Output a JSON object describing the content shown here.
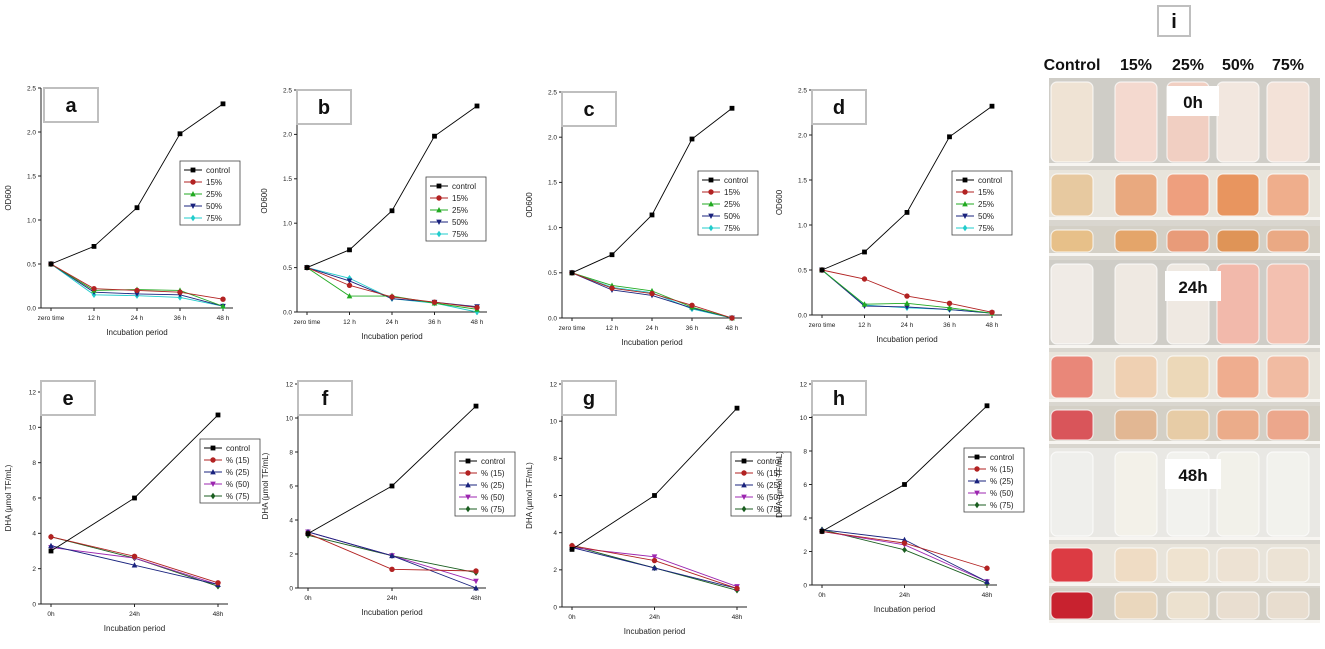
{
  "photo_panel": {
    "letter": "i",
    "columns": [
      "Control",
      "15%",
      "25%",
      "50%",
      "75%"
    ],
    "time_labels": [
      "0h",
      "24h",
      "48h"
    ]
  },
  "chart_data": [
    {
      "panel": "a",
      "type": "line",
      "xlabel": "Incubation period",
      "ylabel": "OD600",
      "categories": [
        "zero time",
        "12 h",
        "24 h",
        "36 h",
        "48 h"
      ],
      "ylim": [
        0,
        2.5
      ],
      "yticks": [
        "0.0",
        "0.5",
        "1.0",
        "1.5",
        "2.0",
        "2.5"
      ],
      "series": [
        {
          "name": "control",
          "color": "#000000",
          "marker": "square",
          "values": [
            0.5,
            0.7,
            1.14,
            1.98,
            2.32
          ]
        },
        {
          "name": "15%",
          "color": "#b22222",
          "marker": "circle",
          "values": [
            0.5,
            0.22,
            0.2,
            0.18,
            0.1
          ]
        },
        {
          "name": "25%",
          "color": "#22aa22",
          "marker": "triangle-up",
          "values": [
            0.5,
            0.2,
            0.21,
            0.2,
            0.02
          ]
        },
        {
          "name": "50%",
          "color": "#1a237e",
          "marker": "triangle-down",
          "values": [
            0.5,
            0.18,
            0.16,
            0.15,
            0.02
          ]
        },
        {
          "name": "75%",
          "color": "#22cccc",
          "marker": "diamond",
          "values": [
            0.5,
            0.15,
            0.14,
            0.12,
            0.02
          ]
        }
      ]
    },
    {
      "panel": "b",
      "type": "line",
      "xlabel": "Incubation period",
      "ylabel": "OD600",
      "categories": [
        "zero time",
        "12 h",
        "24 h",
        "36 h",
        "48 h"
      ],
      "ylim": [
        0,
        2.5
      ],
      "yticks": [
        "0.0",
        "0.5",
        "1.0",
        "1.5",
        "2.0",
        "2.5"
      ],
      "series": [
        {
          "name": "control",
          "color": "#000000",
          "marker": "square",
          "values": [
            0.5,
            0.7,
            1.14,
            1.98,
            2.32
          ]
        },
        {
          "name": "15%",
          "color": "#b22222",
          "marker": "circle",
          "values": [
            0.5,
            0.3,
            0.17,
            0.11,
            0.05
          ]
        },
        {
          "name": "25%",
          "color": "#22aa22",
          "marker": "triangle-up",
          "values": [
            0.5,
            0.18,
            0.18,
            0.1,
            0.03
          ]
        },
        {
          "name": "50%",
          "color": "#1a237e",
          "marker": "triangle-down",
          "values": [
            0.5,
            0.35,
            0.15,
            0.11,
            0.06
          ]
        },
        {
          "name": "75%",
          "color": "#22cccc",
          "marker": "diamond",
          "values": [
            0.5,
            0.38,
            0.15,
            0.1,
            0.0
          ]
        }
      ]
    },
    {
      "panel": "c",
      "type": "line",
      "xlabel": "Incubation period",
      "ylabel": "OD600",
      "categories": [
        "zero time",
        "12 h",
        "24 h",
        "36 h",
        "48 h"
      ],
      "ylim": [
        0,
        2.5
      ],
      "yticks": [
        "0.0",
        "0.5",
        "1.0",
        "1.5",
        "2.0",
        "2.5"
      ],
      "series": [
        {
          "name": "control",
          "color": "#000000",
          "marker": "square",
          "values": [
            0.5,
            0.7,
            1.14,
            1.98,
            2.32
          ]
        },
        {
          "name": "15%",
          "color": "#b22222",
          "marker": "circle",
          "values": [
            0.5,
            0.33,
            0.27,
            0.14,
            0.0
          ]
        },
        {
          "name": "25%",
          "color": "#22aa22",
          "marker": "triangle-up",
          "values": [
            0.5,
            0.36,
            0.3,
            0.12,
            0.0
          ]
        },
        {
          "name": "50%",
          "color": "#1a237e",
          "marker": "triangle-down",
          "values": [
            0.5,
            0.31,
            0.25,
            0.11,
            0.0
          ]
        },
        {
          "name": "75%",
          "color": "#22cccc",
          "marker": "diamond",
          "values": [
            0.5,
            0.34,
            0.28,
            0.1,
            0.0
          ]
        }
      ]
    },
    {
      "panel": "d",
      "type": "line",
      "xlabel": "Incubation period",
      "ylabel": "OD600",
      "categories": [
        "zero time",
        "12 h",
        "24 h",
        "36 h",
        "48 h"
      ],
      "ylim": [
        0,
        2.5
      ],
      "yticks": [
        "0.0",
        "0.5",
        "1.0",
        "1.5",
        "2.0",
        "2.5"
      ],
      "series": [
        {
          "name": "control",
          "color": "#000000",
          "marker": "square",
          "values": [
            0.5,
            0.7,
            1.14,
            1.98,
            2.32
          ]
        },
        {
          "name": "15%",
          "color": "#b22222",
          "marker": "circle",
          "values": [
            0.5,
            0.4,
            0.21,
            0.13,
            0.03
          ]
        },
        {
          "name": "25%",
          "color": "#22aa22",
          "marker": "triangle-up",
          "values": [
            0.5,
            0.12,
            0.13,
            0.08,
            0.02
          ]
        },
        {
          "name": "50%",
          "color": "#1a237e",
          "marker": "triangle-down",
          "values": [
            0.5,
            0.1,
            0.09,
            0.06,
            0.02
          ]
        },
        {
          "name": "75%",
          "color": "#22cccc",
          "marker": "diamond",
          "values": [
            0.5,
            0.11,
            0.08,
            0.06,
            0.02
          ]
        }
      ]
    },
    {
      "panel": "e",
      "type": "line",
      "xlabel": "Incubation period",
      "ylabel": "DHA (μmol TF/mL)",
      "categories": [
        "0h",
        "24h",
        "48h"
      ],
      "ylim": [
        0,
        12
      ],
      "yticks": [
        "0",
        "2",
        "4",
        "6",
        "8",
        "10",
        "12"
      ],
      "series": [
        {
          "name": "control",
          "color": "#000000",
          "marker": "square",
          "values": [
            3.0,
            6.0,
            10.7
          ]
        },
        {
          "name": "% (15)",
          "color": "#b22222",
          "marker": "circle",
          "values": [
            3.8,
            2.7,
            1.2
          ]
        },
        {
          "name": "% (25)",
          "color": "#1a237e",
          "marker": "triangle-up",
          "values": [
            3.3,
            2.2,
            1.1
          ]
        },
        {
          "name": "% (50)",
          "color": "#9c27b0",
          "marker": "triangle-down",
          "values": [
            3.2,
            2.6,
            1.1
          ]
        },
        {
          "name": "% (75)",
          "color": "#1b5e20",
          "marker": "diamond",
          "values": [
            3.8,
            2.6,
            1.0
          ]
        }
      ]
    },
    {
      "panel": "f",
      "type": "line",
      "xlabel": "Incubation period",
      "ylabel": "DHA (μmol TF/mL)",
      "categories": [
        "0h",
        "24h",
        "48h"
      ],
      "ylim": [
        0,
        12
      ],
      "yticks": [
        "0",
        "2",
        "4",
        "6",
        "8",
        "10",
        "12"
      ],
      "series": [
        {
          "name": "control",
          "color": "#000000",
          "marker": "square",
          "values": [
            3.2,
            6.0,
            10.7
          ]
        },
        {
          "name": "% (15)",
          "color": "#b22222",
          "marker": "circle",
          "values": [
            3.2,
            1.1,
            1.0
          ]
        },
        {
          "name": "% (25)",
          "color": "#1a237e",
          "marker": "triangle-up",
          "values": [
            3.3,
            1.9,
            0.0
          ]
        },
        {
          "name": "% (50)",
          "color": "#9c27b0",
          "marker": "triangle-down",
          "values": [
            3.3,
            1.9,
            0.4
          ]
        },
        {
          "name": "% (75)",
          "color": "#1b5e20",
          "marker": "diamond",
          "values": [
            3.1,
            1.9,
            0.9
          ]
        }
      ]
    },
    {
      "panel": "g",
      "type": "line",
      "xlabel": "Incubation period",
      "ylabel": "DHA (μmol TF/mL)",
      "categories": [
        "0h",
        "24h",
        "48h"
      ],
      "ylim": [
        0,
        12
      ],
      "yticks": [
        "0",
        "2",
        "4",
        "6",
        "8",
        "10",
        "12"
      ],
      "series": [
        {
          "name": "control",
          "color": "#000000",
          "marker": "square",
          "values": [
            3.1,
            6.0,
            10.7
          ]
        },
        {
          "name": "% (15)",
          "color": "#b22222",
          "marker": "circle",
          "values": [
            3.3,
            2.5,
            1.0
          ]
        },
        {
          "name": "% (25)",
          "color": "#1a237e",
          "marker": "triangle-up",
          "values": [
            3.2,
            2.1,
            1.0
          ]
        },
        {
          "name": "% (50)",
          "color": "#9c27b0",
          "marker": "triangle-down",
          "values": [
            3.2,
            2.7,
            1.1
          ]
        },
        {
          "name": "% (75)",
          "color": "#1b5e20",
          "marker": "diamond",
          "values": [
            3.3,
            2.1,
            0.9
          ]
        }
      ]
    },
    {
      "panel": "h",
      "type": "line",
      "xlabel": "Incubation period",
      "ylabel": "DHA (μmol TF/mL)",
      "categories": [
        "0h",
        "24h",
        "48h"
      ],
      "ylim": [
        0,
        12
      ],
      "yticks": [
        "0",
        "2",
        "4",
        "6",
        "8",
        "10",
        "12"
      ],
      "series": [
        {
          "name": "control",
          "color": "#000000",
          "marker": "square",
          "values": [
            3.2,
            6.0,
            10.7
          ]
        },
        {
          "name": "% (15)",
          "color": "#b22222",
          "marker": "circle",
          "values": [
            3.2,
            2.5,
            1.0
          ]
        },
        {
          "name": "% (25)",
          "color": "#1a237e",
          "marker": "triangle-up",
          "values": [
            3.3,
            2.7,
            0.2
          ]
        },
        {
          "name": "% (50)",
          "color": "#9c27b0",
          "marker": "triangle-down",
          "values": [
            3.2,
            2.4,
            0.2
          ]
        },
        {
          "name": "% (75)",
          "color": "#1b5e20",
          "marker": "diamond",
          "values": [
            3.3,
            2.1,
            0.1
          ]
        }
      ]
    }
  ]
}
